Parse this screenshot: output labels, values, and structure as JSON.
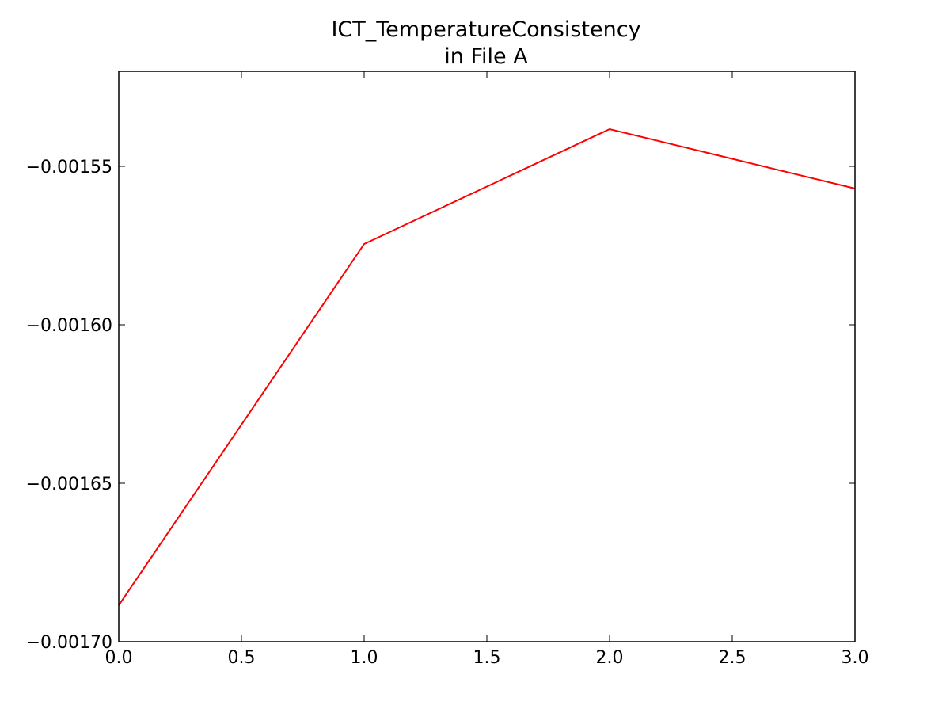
{
  "chart_data": {
    "type": "line",
    "title": "ICT_TemperatureConsistency",
    "subtitle": "in File A",
    "x": [
      0,
      1,
      2,
      3
    ],
    "series": [
      {
        "color": "#ff0000",
        "values": [
          -0.0016885,
          -0.0015745,
          -0.00153825,
          -0.001557
        ]
      }
    ],
    "xlim": [
      0,
      3
    ],
    "ylim": [
      -0.0017,
      -0.00152
    ],
    "xticks": [
      {
        "value": 0,
        "label": "0.0"
      },
      {
        "value": 0.5,
        "label": "0.5"
      },
      {
        "value": 1,
        "label": "1.0"
      },
      {
        "value": 1.5,
        "label": "1.5"
      },
      {
        "value": 2,
        "label": "2.0"
      },
      {
        "value": 2.5,
        "label": "2.5"
      },
      {
        "value": 3,
        "label": "3.0"
      }
    ],
    "yticks": [
      {
        "value": -0.0017,
        "label": "−0.00170"
      },
      {
        "value": -0.00165,
        "label": "−0.00165"
      },
      {
        "value": -0.0016,
        "label": "−0.00160"
      },
      {
        "value": -0.00155,
        "label": "−0.00155"
      }
    ],
    "grid": false
  }
}
